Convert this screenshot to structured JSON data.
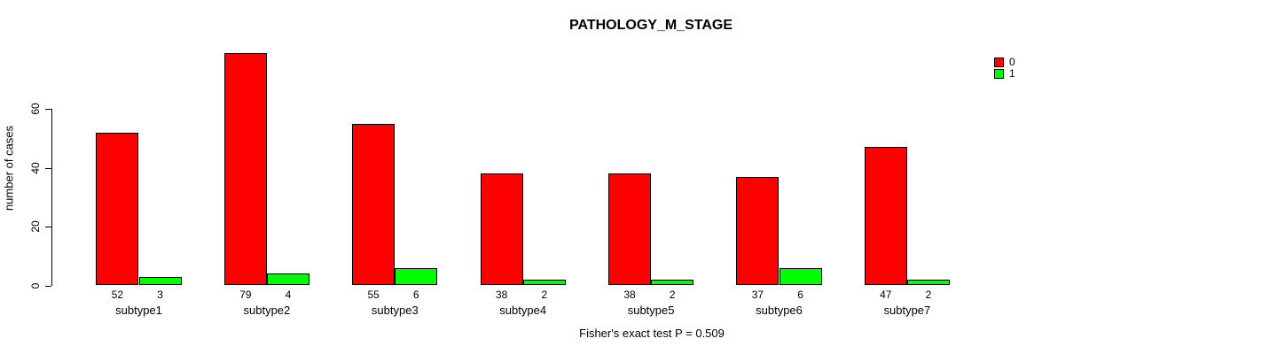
{
  "chart_data": {
    "type": "bar",
    "title": "PATHOLOGY_M_STAGE",
    "ylabel": "number of cases",
    "xlabel": "",
    "annotation": "Fisher's exact test P = 0.509",
    "categories": [
      "subtype1",
      "subtype2",
      "subtype3",
      "subtype4",
      "subtype5",
      "subtype6",
      "subtype7"
    ],
    "series": [
      {
        "name": "0",
        "color": "#ff0000",
        "values": [
          52,
          79,
          55,
          38,
          38,
          37,
          47
        ]
      },
      {
        "name": "1",
        "color": "#00ff00",
        "values": [
          3,
          4,
          6,
          2,
          2,
          6,
          2
        ]
      }
    ],
    "yticks": [
      0,
      20,
      40,
      60
    ],
    "ylim": [
      0,
      80
    ],
    "bar_value_labels": true,
    "grid": "off",
    "legend_position": "top-right"
  }
}
